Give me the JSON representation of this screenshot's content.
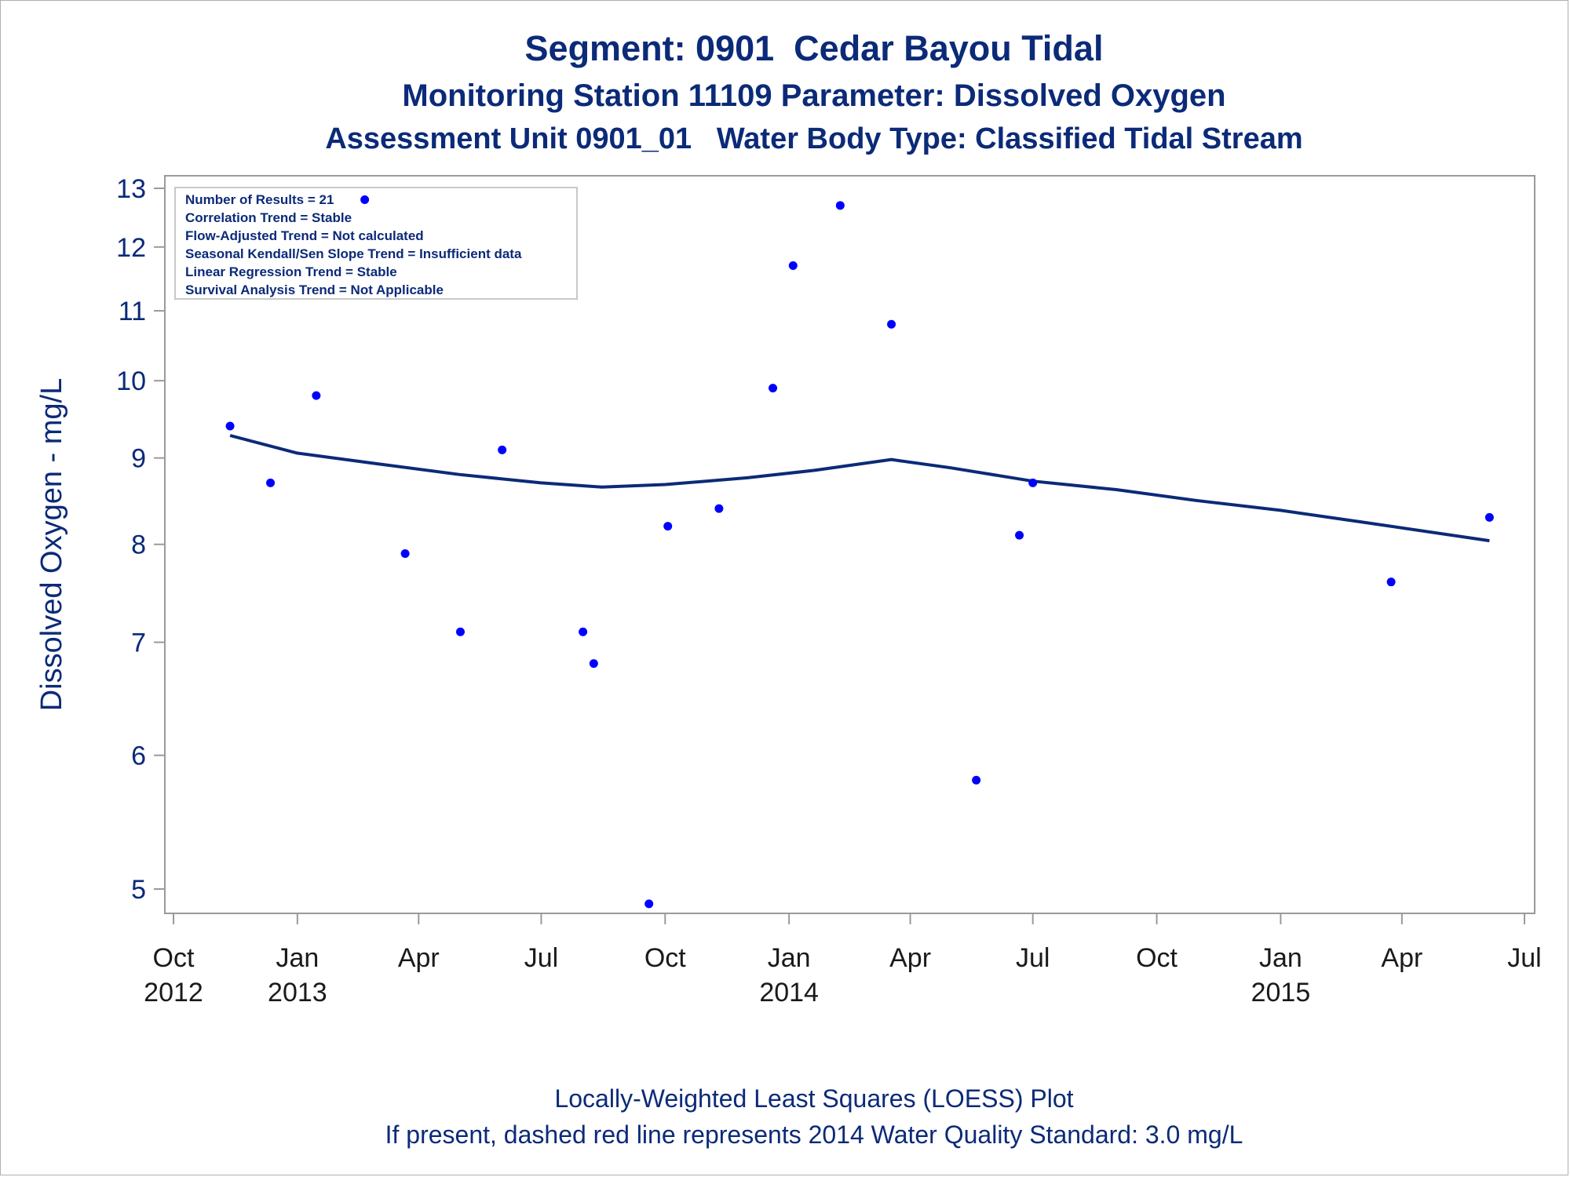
{
  "titles": {
    "line1": "Segment: 0901  Cedar Bayou Tidal",
    "line2": "Monitoring Station 11109 Parameter: Dissolved Oxygen",
    "line3": "Assessment Unit 0901_01   Water Body Type: Classified Tidal Stream"
  },
  "footnotes": {
    "line1": "Locally-Weighted Least Squares (LOESS) Plot",
    "line2": "If present, dashed red line represents 2014 Water Quality Standard: 3.0 mg/L"
  },
  "colors": {
    "text": "#0b2a78",
    "marker": "#0000ff",
    "loess_line": "#0b2a78",
    "axis": "#9a9a9a"
  },
  "chart_data": {
    "type": "scatter",
    "ylabel": "Dissolved Oxygen - mg/L",
    "xlabel": "",
    "y_scale": "log",
    "ylim": [
      4.92,
      13
    ],
    "y_ticks": [
      5,
      6,
      7,
      8,
      9,
      10,
      11,
      12,
      13
    ],
    "xlim": [
      "2012-10-01",
      "2015-07-01"
    ],
    "x_ticks": [
      {
        "date": "2012-10-01",
        "month": "Oct",
        "year": "2012"
      },
      {
        "date": "2013-01-01",
        "month": "Jan",
        "year": "2013"
      },
      {
        "date": "2013-04-01",
        "month": "Apr",
        "year": ""
      },
      {
        "date": "2013-07-01",
        "month": "Jul",
        "year": ""
      },
      {
        "date": "2013-10-01",
        "month": "Oct",
        "year": ""
      },
      {
        "date": "2014-01-01",
        "month": "Jan",
        "year": "2014"
      },
      {
        "date": "2014-04-01",
        "month": "Apr",
        "year": ""
      },
      {
        "date": "2014-07-01",
        "month": "Jul",
        "year": ""
      },
      {
        "date": "2014-10-01",
        "month": "Oct",
        "year": ""
      },
      {
        "date": "2015-01-01",
        "month": "Jan",
        "year": "2015"
      },
      {
        "date": "2015-04-01",
        "month": "Apr",
        "year": ""
      },
      {
        "date": "2015-07-01",
        "month": "Jul",
        "year": ""
      }
    ],
    "info_box": [
      "Number of Results = 21",
      "Correlation Trend = Stable",
      "Flow-Adjusted Trend = Not calculated",
      "Seasonal Kendall/Sen Slope Trend = Insufficient data",
      "Linear Regression Trend = Stable",
      "Survival Analysis Trend = Not Applicable"
    ],
    "points": [
      {
        "date": "2012-11-12",
        "value": 9.4
      },
      {
        "date": "2012-12-12",
        "value": 8.7
      },
      {
        "date": "2013-01-15",
        "value": 9.8
      },
      {
        "date": "2013-02-20",
        "value": 12.8
      },
      {
        "date": "2013-03-22",
        "value": 7.9
      },
      {
        "date": "2013-05-02",
        "value": 7.1
      },
      {
        "date": "2013-06-02",
        "value": 9.1
      },
      {
        "date": "2013-08-01",
        "value": 7.1
      },
      {
        "date": "2013-08-09",
        "value": 6.8
      },
      {
        "date": "2013-09-19",
        "value": 4.9
      },
      {
        "date": "2013-10-03",
        "value": 8.2
      },
      {
        "date": "2013-11-10",
        "value": 8.4
      },
      {
        "date": "2013-12-20",
        "value": 9.9
      },
      {
        "date": "2014-01-04",
        "value": 11.7
      },
      {
        "date": "2014-02-08",
        "value": 12.7
      },
      {
        "date": "2014-03-18",
        "value": 10.8
      },
      {
        "date": "2014-05-20",
        "value": 5.8
      },
      {
        "date": "2014-06-21",
        "value": 8.1
      },
      {
        "date": "2014-07-01",
        "value": 8.7
      },
      {
        "date": "2015-03-24",
        "value": 7.6
      },
      {
        "date": "2015-06-05",
        "value": 8.3
      }
    ],
    "loess": [
      {
        "date": "2012-11-12",
        "value": 9.28
      },
      {
        "date": "2013-01-01",
        "value": 9.06
      },
      {
        "date": "2013-03-01",
        "value": 8.93
      },
      {
        "date": "2013-05-01",
        "value": 8.8
      },
      {
        "date": "2013-07-01",
        "value": 8.7
      },
      {
        "date": "2013-08-15",
        "value": 8.65
      },
      {
        "date": "2013-10-01",
        "value": 8.68
      },
      {
        "date": "2013-12-01",
        "value": 8.76
      },
      {
        "date": "2014-01-20",
        "value": 8.85
      },
      {
        "date": "2014-03-18",
        "value": 8.98
      },
      {
        "date": "2014-05-01",
        "value": 8.88
      },
      {
        "date": "2014-07-01",
        "value": 8.72
      },
      {
        "date": "2014-09-01",
        "value": 8.62
      },
      {
        "date": "2014-11-01",
        "value": 8.49
      },
      {
        "date": "2015-01-01",
        "value": 8.38
      },
      {
        "date": "2015-03-01",
        "value": 8.25
      },
      {
        "date": "2015-06-05",
        "value": 8.04
      }
    ]
  }
}
